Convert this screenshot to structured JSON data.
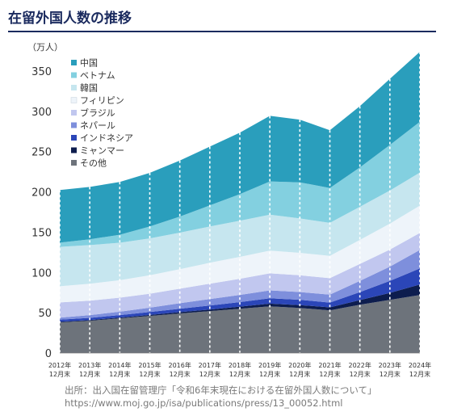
{
  "title": "在留外国人数の推移",
  "source": {
    "line1": "出所：出入国在留管理庁「令和6年末現在における在留外国人数について」",
    "line2": "https://www.moj.go.jp/isa/publications/press/13_00052.html"
  },
  "chart_data": {
    "type": "area",
    "stacked": true,
    "yunit": "（万人）",
    "ylim": [
      0,
      370
    ],
    "yticks": [
      0,
      50,
      100,
      150,
      200,
      250,
      300,
      350
    ],
    "grid": false,
    "x_dashed_separators": true,
    "legend_position": "top-left",
    "x": [
      [
        "2012年",
        "12月末"
      ],
      [
        "2013年",
        "12月末"
      ],
      [
        "2014年",
        "12月末"
      ],
      [
        "2015年",
        "12月末"
      ],
      [
        "2016年",
        "12月末"
      ],
      [
        "2017年",
        "12月末"
      ],
      [
        "2018年",
        "12月末"
      ],
      [
        "2019年",
        "12月末"
      ],
      [
        "2020年",
        "12月末"
      ],
      [
        "2021年",
        "12月末"
      ],
      [
        "2022年",
        "12月末"
      ],
      [
        "2023年",
        "12月末"
      ],
      [
        "2024年",
        "12月末"
      ]
    ],
    "series": [
      {
        "name": "その他",
        "color": "#6d737b",
        "values": [
          38,
          40,
          43,
          46,
          49,
          52,
          55,
          58,
          56,
          53,
          60,
          66,
          72
        ]
      },
      {
        "name": "ミャンマー",
        "color": "#0d1d4e",
        "values": [
          0.8,
          0.9,
          1,
          1.2,
          1.7,
          2,
          2.6,
          3.3,
          3.5,
          3.7,
          5.7,
          8.6,
          13
        ]
      },
      {
        "name": "インドネシア",
        "color": "#2b46b8",
        "values": [
          2.5,
          2.7,
          3,
          3.6,
          4.3,
          5,
          5.6,
          6.7,
          6.6,
          5.9,
          9.9,
          15,
          20
        ]
      },
      {
        "name": "ネパール",
        "color": "#7e8fdc",
        "values": [
          2.5,
          3.4,
          4.2,
          5.5,
          6.8,
          8,
          8.9,
          9.7,
          9.6,
          9.8,
          14,
          17.6,
          23
        ]
      },
      {
        "name": "ブラジル",
        "color": "#c1c7ef",
        "values": [
          19,
          18,
          17.5,
          17.3,
          18,
          19,
          20.1,
          21.2,
          20.8,
          20.5,
          20.9,
          21.2,
          21
        ]
      },
      {
        "name": "フィリピン",
        "color": "#eef4fa",
        "values": [
          20,
          21,
          21.7,
          23,
          24.3,
          26,
          27.1,
          28.3,
          27.9,
          27.7,
          29.9,
          32.2,
          34
        ]
      },
      {
        "name": "韓国",
        "color": "#c6e6ef",
        "values": [
          49,
          48,
          46.5,
          45.7,
          45.3,
          45,
          44.9,
          44.6,
          42.7,
          41,
          41.1,
          41.1,
          41
        ]
      },
      {
        "name": "ベトナム",
        "color": "#83d0e0",
        "values": [
          5.2,
          7.2,
          9.9,
          14.7,
          20,
          26.2,
          33,
          41.2,
          44.8,
          43.3,
          48.9,
          56.5,
          63
        ]
      },
      {
        "name": "中国",
        "color": "#2a9ebc",
        "values": [
          65.3,
          65,
          65.5,
          66.6,
          69.5,
          73,
          76.4,
          81.4,
          77.8,
          71.6,
          76.1,
          82.2,
          87
        ]
      }
    ],
    "legend_order": [
      "中国",
      "ベトナム",
      "韓国",
      "フィリピン",
      "ブラジル",
      "ネパール",
      "インドネシア",
      "ミャンマー",
      "その他"
    ]
  }
}
